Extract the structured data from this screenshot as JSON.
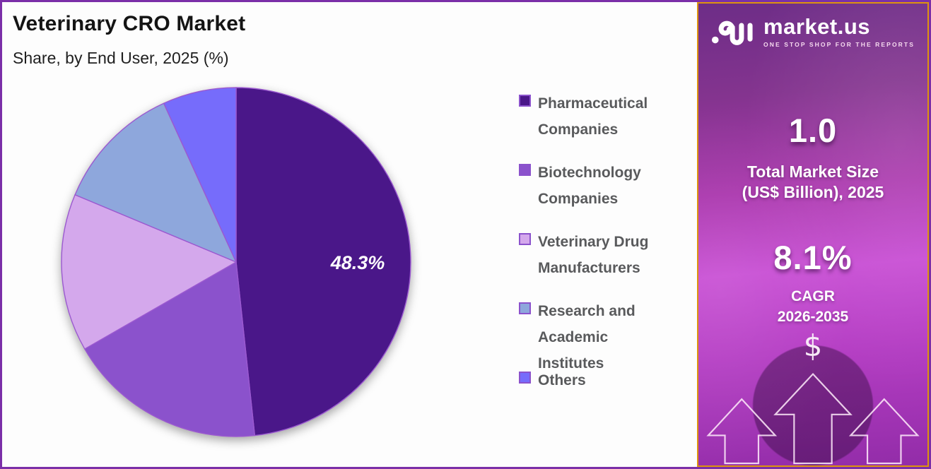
{
  "header": {
    "title": "Veterinary CRO Market",
    "subtitle": "Share, by End User, 2025 (%)"
  },
  "chart_data": {
    "type": "pie",
    "title": "Veterinary CRO Market — Share, by End User, 2025 (%)",
    "categories": [
      "Pharmaceutical Companies",
      "Biotechnology Companies",
      "Veterinary Drug Manufacturers",
      "Research and Academic Institutes",
      "Others"
    ],
    "values": [
      48.3,
      18.4,
      14.6,
      11.9,
      6.8
    ],
    "colors": [
      "#4a1789",
      "#8b52cc",
      "#d4a8ec",
      "#8ea7dc",
      "#766cfb"
    ],
    "data_labels_shown": [
      {
        "category": "Pharmaceutical Companies",
        "text": "48.3%"
      }
    ],
    "start_angle_deg": 0,
    "direction": "clockwise",
    "legend_position": "right",
    "note": "only the 48.3% slice is labeled in the figure; remaining values estimated from slice angles"
  },
  "legend": {
    "items": [
      {
        "label": "Pharmaceutical Companies",
        "color": "#4a1789"
      },
      {
        "label": "Biotechnology Companies",
        "color": "#8b52cc"
      },
      {
        "label": "Veterinary Drug Manufacturers",
        "color": "#d4a8ec"
      },
      {
        "label": "Research and Academic Institutes",
        "color": "#8ea7dc"
      },
      {
        "label": "Others",
        "color": "#766cfb"
      }
    ],
    "swatch_border_color": "#8b52cc"
  },
  "pie_label": "48.3%",
  "sidebar": {
    "brand": {
      "name": "market.us",
      "tagline": "ONE STOP SHOP FOR THE REPORTS"
    },
    "market_size": {
      "value": "1.0",
      "label_line1": "Total Market Size",
      "label_line2": "(US$ Billion), 2025"
    },
    "cagr": {
      "value": "8.1%",
      "label_line1": "CAGR",
      "label_line2": "2026-2035"
    },
    "dollar_glyph": "$"
  },
  "colors": {
    "outer_border": "#7b2fa8",
    "sidebar_border": "#dd930e",
    "sidebar_gradient_mid": "#c84ed4",
    "legend_text": "#595a5c",
    "title_text": "#141414"
  }
}
